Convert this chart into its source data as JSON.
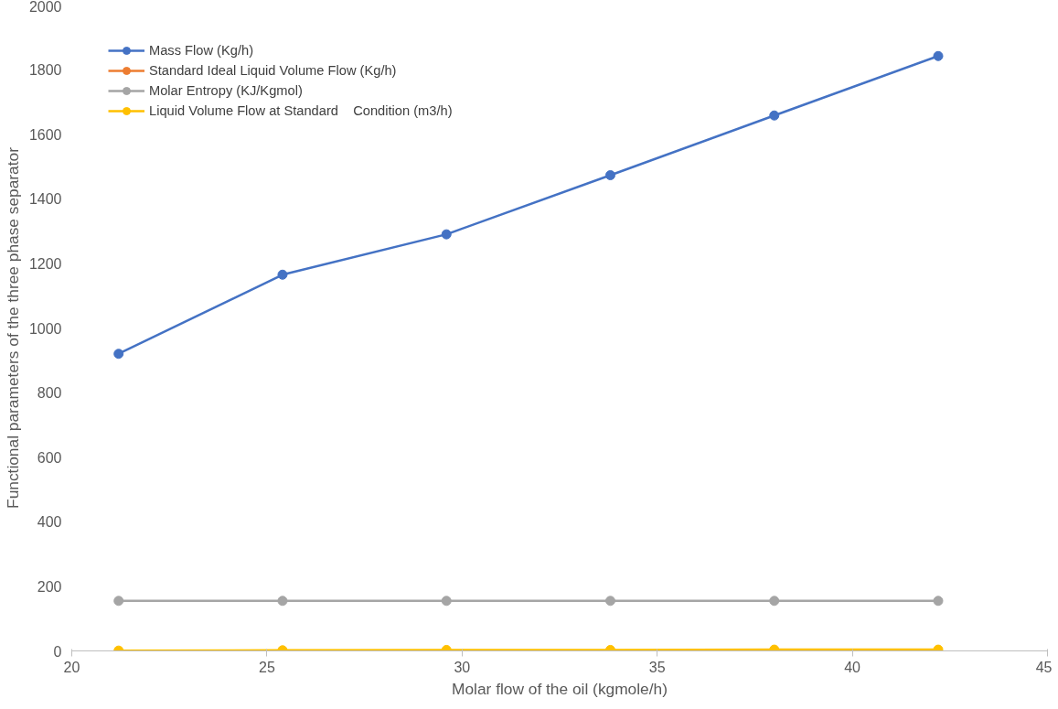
{
  "chart_data": {
    "type": "line",
    "xlabel": "Molar flow of the oil (kgmole/h)",
    "ylabel": "Functional parameters of the three phase separator",
    "x": [
      21.2,
      25.4,
      29.6,
      33.8,
      38.0,
      42.2
    ],
    "xlim": [
      20,
      45
    ],
    "xticks": [
      20,
      25,
      30,
      35,
      40,
      45
    ],
    "ylim": [
      0,
      2000
    ],
    "yticks": [
      0,
      200,
      400,
      600,
      800,
      1000,
      1200,
      1400,
      1600,
      1800,
      2000
    ],
    "grid": false,
    "legend": "top left",
    "marker": "circle",
    "line_style": "solid",
    "series": [
      {
        "name": "Mass Flow (Kg/h)",
        "color": "#4472c4",
        "values": [
          920,
          1165,
          1290,
          1473,
          1658,
          1842
        ]
      },
      {
        "name": "Standard Ideal Liquid Volume Flow (Kg/h)",
        "color": "#ed7d31",
        "values": [
          null,
          null,
          null,
          null,
          null,
          null
        ]
      },
      {
        "name": "Molar Entropy (KJ/Kgmol)",
        "color": "#a5a5a5",
        "values": [
          155,
          155,
          155,
          155,
          155,
          155
        ]
      },
      {
        "name": "Liquid Volume Flow at Standard    Condition (m3/h)",
        "color": "#ffc000",
        "values": [
          1,
          2,
          3,
          3,
          4,
          4
        ]
      }
    ]
  }
}
